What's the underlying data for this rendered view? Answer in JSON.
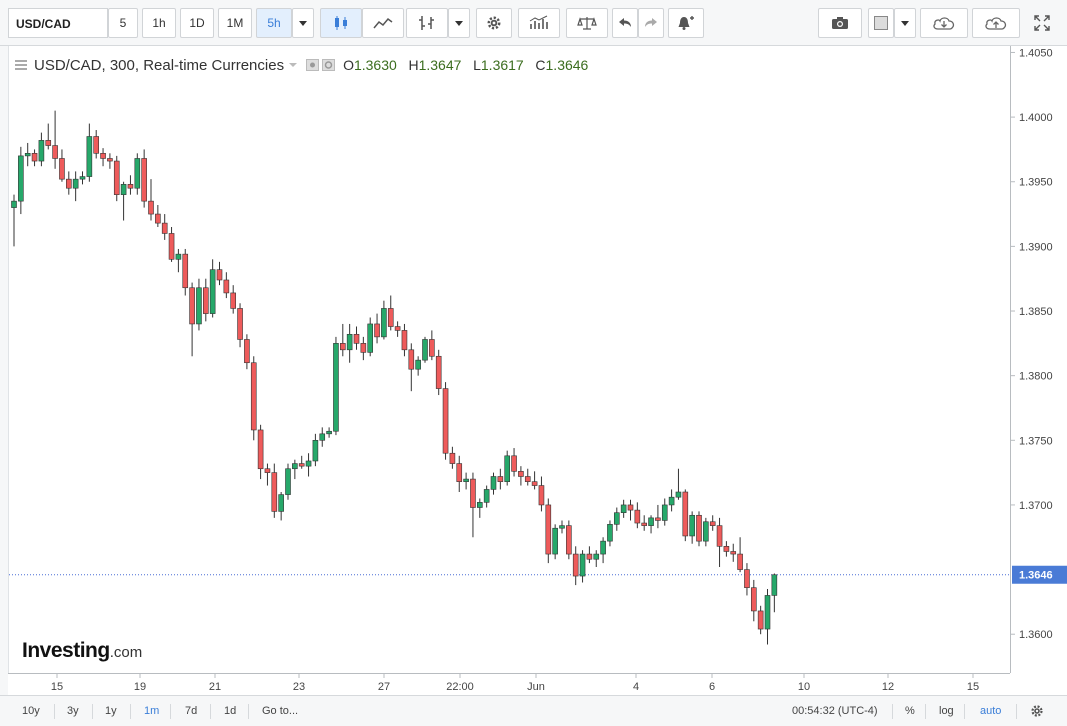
{
  "toolbar": {
    "symbol": "USD/CAD",
    "intervals": [
      "5",
      "1h",
      "1D",
      "1M",
      "5h"
    ],
    "active_interval": "5h"
  },
  "legend": {
    "title": "USD/CAD, 300, Real-time Currencies",
    "open_label": "O",
    "open": "1.3630",
    "high_label": "H",
    "high": "1.3647",
    "low_label": "L",
    "low": "1.3617",
    "close_label": "C",
    "close": "1.3646"
  },
  "logo": {
    "brand": "Investing",
    "suffix": ".com"
  },
  "bottombar": {
    "ranges": [
      "10y",
      "3y",
      "1y",
      "1m",
      "7d",
      "1d"
    ],
    "active_range": "1m",
    "goto": "Go to...",
    "clock": "00:54:32 (UTC-4)",
    "percent": "%",
    "log": "log",
    "auto": "auto"
  },
  "chart_data": {
    "type": "candlestick",
    "y_ticks": [
      "1.4050",
      "1.4000",
      "1.3950",
      "1.3900",
      "1.3850",
      "1.3800",
      "1.3750",
      "1.3700",
      "1.3600"
    ],
    "y_range": [
      1.357,
      1.4055
    ],
    "last_price": "1.3646",
    "x_ticks": [
      "15",
      "19",
      "21",
      "23",
      "27",
      "22:00",
      "Jun",
      "4",
      "6",
      "10",
      "12",
      "15"
    ],
    "candles": [
      [
        1.393,
        1.394,
        1.39,
        1.3935
      ],
      [
        1.3935,
        1.3977,
        1.3925,
        1.397
      ],
      [
        1.397,
        1.398,
        1.3962,
        1.3972
      ],
      [
        1.3972,
        1.3975,
        1.3962,
        1.3966
      ],
      [
        1.3966,
        1.3988,
        1.3962,
        1.3982
      ],
      [
        1.3982,
        1.3995,
        1.3975,
        1.3978
      ],
      [
        1.3978,
        1.4005,
        1.396,
        1.3968
      ],
      [
        1.3968,
        1.3975,
        1.395,
        1.3952
      ],
      [
        1.3952,
        1.3958,
        1.394,
        1.3945
      ],
      [
        1.3945,
        1.3958,
        1.3935,
        1.3952
      ],
      [
        1.3952,
        1.3958,
        1.3948,
        1.3954
      ],
      [
        1.3954,
        1.3995,
        1.395,
        1.3985
      ],
      [
        1.3985,
        1.399,
        1.3968,
        1.3972
      ],
      [
        1.3972,
        1.3976,
        1.3962,
        1.3968
      ],
      [
        1.3968,
        1.3972,
        1.396,
        1.3966
      ],
      [
        1.3966,
        1.397,
        1.3935,
        1.394
      ],
      [
        1.394,
        1.395,
        1.392,
        1.3948
      ],
      [
        1.3948,
        1.3955,
        1.394,
        1.3945
      ],
      [
        1.3945,
        1.3972,
        1.394,
        1.3968
      ],
      [
        1.3968,
        1.3975,
        1.393,
        1.3935
      ],
      [
        1.3935,
        1.3952,
        1.392,
        1.3925
      ],
      [
        1.3925,
        1.3932,
        1.3915,
        1.3918
      ],
      [
        1.3918,
        1.3925,
        1.3905,
        1.391
      ],
      [
        1.391,
        1.3915,
        1.3888,
        1.389
      ],
      [
        1.389,
        1.3898,
        1.388,
        1.3894
      ],
      [
        1.3894,
        1.3898,
        1.3862,
        1.3868
      ],
      [
        1.3868,
        1.3872,
        1.3815,
        1.384
      ],
      [
        1.384,
        1.3875,
        1.3835,
        1.3868
      ],
      [
        1.3868,
        1.3875,
        1.3842,
        1.3848
      ],
      [
        1.3848,
        1.389,
        1.3845,
        1.3882
      ],
      [
        1.3882,
        1.3888,
        1.387,
        1.3874
      ],
      [
        1.3874,
        1.388,
        1.386,
        1.3864
      ],
      [
        1.3864,
        1.387,
        1.3848,
        1.3852
      ],
      [
        1.3852,
        1.3856,
        1.3822,
        1.3828
      ],
      [
        1.3828,
        1.3832,
        1.3805,
        1.381
      ],
      [
        1.381,
        1.3815,
        1.375,
        1.3758
      ],
      [
        1.3758,
        1.3762,
        1.372,
        1.3728
      ],
      [
        1.3728,
        1.3732,
        1.3715,
        1.3725
      ],
      [
        1.3725,
        1.3732,
        1.369,
        1.3695
      ],
      [
        1.3695,
        1.371,
        1.3688,
        1.3708
      ],
      [
        1.3708,
        1.3732,
        1.3704,
        1.3728
      ],
      [
        1.3728,
        1.3735,
        1.372,
        1.3732
      ],
      [
        1.3732,
        1.3738,
        1.3728,
        1.373
      ],
      [
        1.373,
        1.374,
        1.3722,
        1.3734
      ],
      [
        1.3734,
        1.3755,
        1.373,
        1.375
      ],
      [
        1.375,
        1.376,
        1.3745,
        1.3755
      ],
      [
        1.3755,
        1.376,
        1.3752,
        1.3757
      ],
      [
        1.3757,
        1.383,
        1.3754,
        1.3825
      ],
      [
        1.3825,
        1.384,
        1.3815,
        1.382
      ],
      [
        1.382,
        1.384,
        1.381,
        1.3832
      ],
      [
        1.3832,
        1.3838,
        1.382,
        1.3825
      ],
      [
        1.3825,
        1.383,
        1.3812,
        1.3818
      ],
      [
        1.3818,
        1.3845,
        1.3815,
        1.384
      ],
      [
        1.384,
        1.3848,
        1.3825,
        1.383
      ],
      [
        1.383,
        1.3858,
        1.3828,
        1.3852
      ],
      [
        1.3852,
        1.3862,
        1.3835,
        1.3838
      ],
      [
        1.3838,
        1.3842,
        1.383,
        1.3835
      ],
      [
        1.3835,
        1.384,
        1.3815,
        1.382
      ],
      [
        1.382,
        1.3825,
        1.3788,
        1.3805
      ],
      [
        1.3805,
        1.3815,
        1.38,
        1.3812
      ],
      [
        1.3812,
        1.383,
        1.381,
        1.3828
      ],
      [
        1.3828,
        1.3835,
        1.3812,
        1.3815
      ],
      [
        1.3815,
        1.382,
        1.3785,
        1.379
      ],
      [
        1.379,
        1.3795,
        1.3735,
        1.374
      ],
      [
        1.374,
        1.3745,
        1.3728,
        1.3732
      ],
      [
        1.3732,
        1.3738,
        1.371,
        1.3718
      ],
      [
        1.3718,
        1.3725,
        1.3712,
        1.372
      ],
      [
        1.372,
        1.3725,
        1.3675,
        1.3698
      ],
      [
        1.3698,
        1.3705,
        1.369,
        1.3702
      ],
      [
        1.3702,
        1.3715,
        1.3698,
        1.3712
      ],
      [
        1.3712,
        1.3725,
        1.3708,
        1.3722
      ],
      [
        1.3722,
        1.3728,
        1.3712,
        1.3718
      ],
      [
        1.3718,
        1.3742,
        1.3715,
        1.3738
      ],
      [
        1.3738,
        1.3744,
        1.3722,
        1.3726
      ],
      [
        1.3726,
        1.373,
        1.3715,
        1.3722
      ],
      [
        1.3722,
        1.3728,
        1.3715,
        1.3718
      ],
      [
        1.3718,
        1.3726,
        1.3712,
        1.3715
      ],
      [
        1.3715,
        1.3722,
        1.3695,
        1.37
      ],
      [
        1.37,
        1.3705,
        1.3655,
        1.3662
      ],
      [
        1.3662,
        1.3685,
        1.3658,
        1.3682
      ],
      [
        1.3682,
        1.3688,
        1.3678,
        1.3684
      ],
      [
        1.3684,
        1.3688,
        1.3658,
        1.3662
      ],
      [
        1.3662,
        1.3668,
        1.3638,
        1.3645
      ],
      [
        1.3645,
        1.3665,
        1.364,
        1.3662
      ],
      [
        1.3662,
        1.3668,
        1.3655,
        1.3658
      ],
      [
        1.3658,
        1.3665,
        1.3652,
        1.3662
      ],
      [
        1.3662,
        1.3675,
        1.3655,
        1.3672
      ],
      [
        1.3672,
        1.3688,
        1.3668,
        1.3685
      ],
      [
        1.3685,
        1.3698,
        1.368,
        1.3694
      ],
      [
        1.3694,
        1.3704,
        1.369,
        1.37
      ],
      [
        1.37,
        1.3704,
        1.3688,
        1.3696
      ],
      [
        1.3696,
        1.3702,
        1.3682,
        1.3686
      ],
      [
        1.3686,
        1.3692,
        1.368,
        1.3684
      ],
      [
        1.3684,
        1.3692,
        1.3678,
        1.369
      ],
      [
        1.369,
        1.37,
        1.3682,
        1.3688
      ],
      [
        1.3688,
        1.3705,
        1.3684,
        1.37
      ],
      [
        1.37,
        1.3712,
        1.3695,
        1.3706
      ],
      [
        1.3706,
        1.3728,
        1.3704,
        1.371
      ],
      [
        1.371,
        1.3712,
        1.3672,
        1.3676
      ],
      [
        1.3676,
        1.3695,
        1.367,
        1.3692
      ],
      [
        1.3692,
        1.3695,
        1.3668,
        1.3672
      ],
      [
        1.3672,
        1.369,
        1.3668,
        1.3687
      ],
      [
        1.3687,
        1.3692,
        1.368,
        1.3684
      ],
      [
        1.3684,
        1.369,
        1.3652,
        1.3668
      ],
      [
        1.3668,
        1.3672,
        1.366,
        1.3664
      ],
      [
        1.3664,
        1.367,
        1.3656,
        1.3662
      ],
      [
        1.3662,
        1.3675,
        1.3648,
        1.365
      ],
      [
        1.365,
        1.3655,
        1.363,
        1.3636
      ],
      [
        1.3636,
        1.3642,
        1.361,
        1.3618
      ],
      [
        1.3618,
        1.3622,
        1.36,
        1.3604
      ],
      [
        1.3604,
        1.3635,
        1.3592,
        1.363
      ],
      [
        1.363,
        1.3647,
        1.3617,
        1.3646
      ]
    ]
  }
}
